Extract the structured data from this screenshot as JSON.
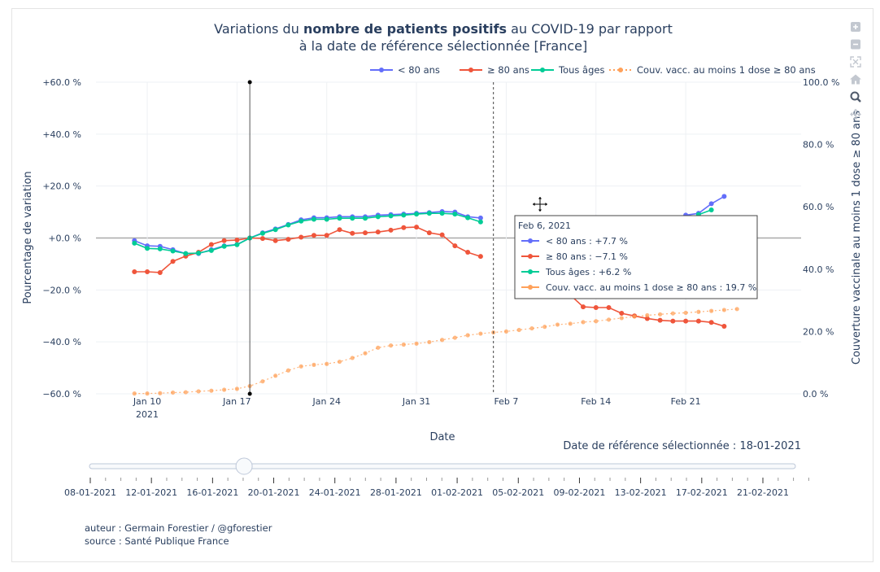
{
  "chart_data": {
    "type": "line",
    "title_parts": [
      {
        "text": "Variations du ",
        "bold": false
      },
      {
        "text": "nombre de patients positifs",
        "bold": true
      },
      {
        "text": " au COVID-19 par rapport",
        "bold": false
      }
    ],
    "title_line2": "à la date de référence sélectionnée [France]",
    "xlabel": "Date",
    "ylabel": "Pourcentage de variation",
    "y2label": "Couverture vaccinale au moins 1 dose ≥ 80 ans",
    "ylim": [
      -60,
      60
    ],
    "y2lim": [
      0,
      100
    ],
    "yticks": [
      "+60.0 %",
      "+40.0 %",
      "+20.0 %",
      "+0.0 %",
      "−20.0 %",
      "−40.0 %",
      "−60.0 %"
    ],
    "y2ticks": [
      "100.0 %",
      "80.0 %",
      "60.0 %",
      "40.0 %",
      "20.0 %",
      "0.0 %"
    ],
    "xticks": [
      {
        "date": "2021-01-10",
        "label": "Jan 10",
        "sub": "2021"
      },
      {
        "date": "2021-01-17",
        "label": "Jan 17",
        "sub": ""
      },
      {
        "date": "2021-01-24",
        "label": "Jan 24",
        "sub": ""
      },
      {
        "date": "2021-01-31",
        "label": "Jan 31",
        "sub": ""
      },
      {
        "date": "2021-02-07",
        "label": "Feb 7",
        "sub": ""
      },
      {
        "date": "2021-02-14",
        "label": "Feb 14",
        "sub": ""
      },
      {
        "date": "2021-02-21",
        "label": "Feb 21",
        "sub": ""
      }
    ],
    "xlim": [
      "2021-01-06",
      "2021-03-02"
    ],
    "grid": true,
    "legend_position": "top-right",
    "x": [
      "2021-01-09",
      "2021-01-10",
      "2021-01-11",
      "2021-01-12",
      "2021-01-13",
      "2021-01-14",
      "2021-01-15",
      "2021-01-16",
      "2021-01-17",
      "2021-01-18",
      "2021-01-19",
      "2021-01-20",
      "2021-01-21",
      "2021-01-22",
      "2021-01-23",
      "2021-01-24",
      "2021-01-25",
      "2021-01-26",
      "2021-01-27",
      "2021-01-28",
      "2021-01-29",
      "2021-01-30",
      "2021-01-31",
      "2021-02-01",
      "2021-02-02",
      "2021-02-03",
      "2021-02-04",
      "2021-02-05",
      "2021-02-06",
      "2021-02-07",
      "2021-02-08",
      "2021-02-09",
      "2021-02-10",
      "2021-02-11",
      "2021-02-12",
      "2021-02-13",
      "2021-02-14",
      "2021-02-15",
      "2021-02-16",
      "2021-02-17",
      "2021-02-18",
      "2021-02-19",
      "2021-02-20",
      "2021-02-21",
      "2021-02-22",
      "2021-02-23",
      "2021-02-24",
      "2021-02-25"
    ],
    "series": [
      {
        "name": "< 80 ans",
        "color": "#636efa",
        "axis": "y",
        "values": [
          -1,
          -3,
          -3.2,
          -4.5,
          -6,
          -6,
          -4.5,
          -3,
          -2.5,
          0,
          2,
          3.5,
          5.2,
          7,
          7.8,
          7.8,
          8.2,
          8.2,
          8.2,
          8.8,
          9,
          9.2,
          9.5,
          9.8,
          10.2,
          10,
          8.2,
          7.7,
          null,
          null,
          null,
          null,
          null,
          null,
          null,
          null,
          null,
          null,
          null,
          null,
          null,
          null,
          null,
          8.8,
          9.5,
          13.2,
          16,
          null
        ]
      },
      {
        "name": "≥ 80 ans",
        "color": "#ef553b",
        "axis": "y",
        "values": [
          -13,
          -13,
          -13.3,
          -9,
          -7,
          -5.5,
          -2.5,
          -1,
          -0.8,
          0,
          -0.2,
          -1,
          -0.5,
          0.3,
          1,
          1,
          3.2,
          1.8,
          2,
          2.3,
          3,
          4,
          4.2,
          2,
          1.2,
          -3,
          -5.5,
          -7.1,
          null,
          null,
          null,
          null,
          null,
          null,
          -22,
          -26.5,
          -26.8,
          -26.8,
          -29,
          -30,
          -31,
          -31.7,
          -32,
          -32,
          -32,
          -32.5,
          -34,
          null
        ]
      },
      {
        "name": "Tous âges",
        "color": "#00cc96",
        "axis": "y",
        "values": [
          -2,
          -4,
          -4.2,
          -5,
          -6,
          -5.8,
          -4.8,
          -3.2,
          -2.6,
          0,
          1.8,
          3.2,
          5,
          6.5,
          7.2,
          7.2,
          7.6,
          7.6,
          7.6,
          8.2,
          8.5,
          8.8,
          9.2,
          9.5,
          9.5,
          9.2,
          7.8,
          6.2,
          null,
          null,
          null,
          null,
          null,
          null,
          null,
          null,
          null,
          null,
          null,
          null,
          null,
          null,
          null,
          null,
          9,
          10.8,
          null,
          null
        ]
      },
      {
        "name": "Couv. vacc. au moins 1 dose ≥ 80 ans",
        "color": "#ffa15a",
        "axis": "y2",
        "values": [
          0.1,
          0.1,
          0.2,
          0.4,
          0.5,
          0.8,
          1,
          1.3,
          1.6,
          2.5,
          4,
          5.8,
          7.5,
          8.8,
          9.3,
          9.6,
          10.3,
          11.5,
          13,
          14.8,
          15.5,
          15.8,
          16.1,
          16.6,
          17.3,
          18,
          18.8,
          19.3,
          19.7,
          20,
          20.5,
          21,
          21.5,
          22.2,
          22.5,
          23,
          23.3,
          23.8,
          24.3,
          24.8,
          25.2,
          25.5,
          25.8,
          26,
          26.3,
          26.6,
          26.9,
          27.2
        ]
      }
    ],
    "reference_line": {
      "date": "2021-01-18"
    },
    "hover_line": {
      "date": "2021-02-06"
    },
    "tooltip": {
      "title": "Feb 6, 2021",
      "rows": [
        {
          "label": "< 80 ans : +7.7 %",
          "color": "#636efa"
        },
        {
          "label": "≥ 80 ans : −7.1 %",
          "color": "#ef553b"
        },
        {
          "label": "Tous âges : +6.2 %",
          "color": "#00cc96"
        },
        {
          "label": "Couv. vacc. au moins 1 dose ≥ 80 ans : 19.7 %",
          "color": "#ffa15a"
        }
      ]
    },
    "annotation": "Date de référence sélectionnée : 18-01-2021"
  },
  "slider": {
    "value_fraction": 0.219,
    "labels": [
      "08-01-2021",
      "12-01-2021",
      "16-01-2021",
      "20-01-2021",
      "24-01-2021",
      "28-01-2021",
      "01-02-2021",
      "05-02-2021",
      "09-02-2021",
      "13-02-2021",
      "17-02-2021",
      "21-02-2021"
    ]
  },
  "credits": {
    "author": "auteur : Germain Forestier / @gforestier",
    "source": "source : Santé Publique France"
  },
  "modebar": [
    "zoom-in-icon",
    "zoom-out-icon",
    "autoscale-icon",
    "home-icon",
    "zoom-icon",
    "pan-icon"
  ]
}
